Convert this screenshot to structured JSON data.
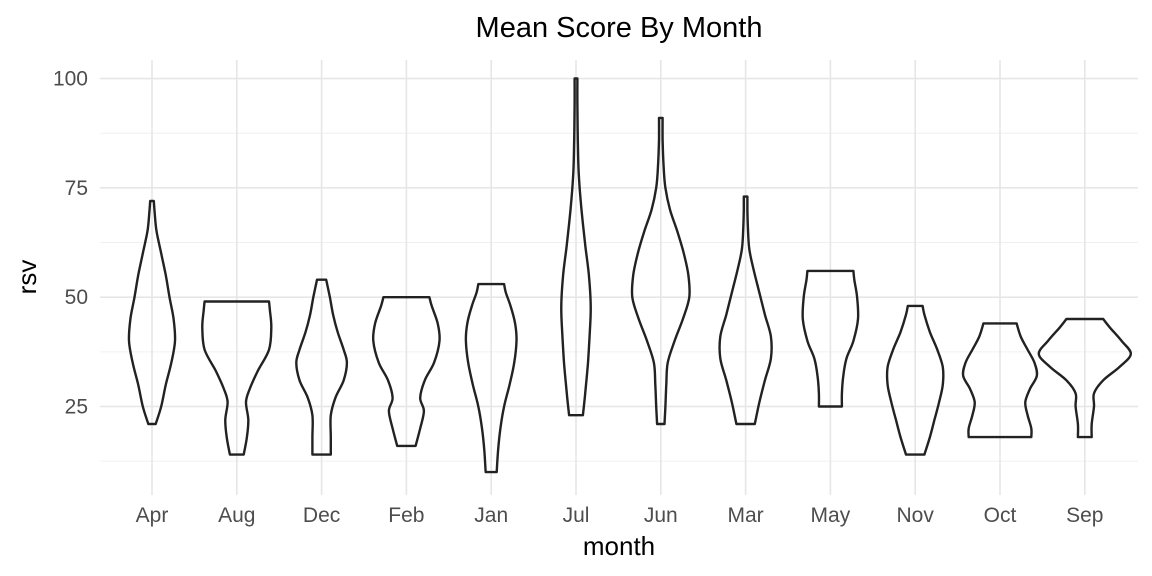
{
  "chart_data": {
    "type": "violin",
    "title": "Mean Score By Month",
    "xlabel": "month",
    "ylabel": "rsv",
    "ylim": [
      6,
      104
    ],
    "yticks": [
      25,
      50,
      75,
      100
    ],
    "grid": true,
    "line_color": "#222222",
    "categories": [
      "Apr",
      "Aug",
      "Dec",
      "Feb",
      "Jan",
      "Jul",
      "Jun",
      "Mar",
      "May",
      "Nov",
      "Oct",
      "Sep"
    ],
    "series": [
      {
        "category": "Apr",
        "min": 21,
        "max": 72,
        "profile": [
          [
            21,
            0.08
          ],
          [
            25,
            0.2
          ],
          [
            30,
            0.3
          ],
          [
            35,
            0.42
          ],
          [
            40,
            0.5
          ],
          [
            45,
            0.47
          ],
          [
            50,
            0.38
          ],
          [
            55,
            0.3
          ],
          [
            60,
            0.2
          ],
          [
            65,
            0.1
          ],
          [
            69,
            0.06
          ],
          [
            72,
            0.04
          ]
        ]
      },
      {
        "category": "Aug",
        "min": 14,
        "max": 49,
        "profile": [
          [
            14,
            0.15
          ],
          [
            18,
            0.22
          ],
          [
            22,
            0.25
          ],
          [
            26,
            0.2
          ],
          [
            29,
            0.28
          ],
          [
            33,
            0.45
          ],
          [
            38,
            0.7
          ],
          [
            43,
            0.75
          ],
          [
            47,
            0.72
          ],
          [
            49,
            0.7
          ]
        ]
      },
      {
        "category": "Dec",
        "min": 14,
        "max": 54,
        "profile": [
          [
            14,
            0.2
          ],
          [
            18,
            0.2
          ],
          [
            23,
            0.2
          ],
          [
            27,
            0.3
          ],
          [
            31,
            0.48
          ],
          [
            35,
            0.55
          ],
          [
            38,
            0.48
          ],
          [
            42,
            0.35
          ],
          [
            46,
            0.25
          ],
          [
            50,
            0.18
          ],
          [
            54,
            0.1
          ]
        ]
      },
      {
        "category": "Feb",
        "min": 16,
        "max": 50,
        "profile": [
          [
            16,
            0.2
          ],
          [
            20,
            0.3
          ],
          [
            24,
            0.38
          ],
          [
            27,
            0.3
          ],
          [
            31,
            0.4
          ],
          [
            35,
            0.6
          ],
          [
            40,
            0.72
          ],
          [
            44,
            0.68
          ],
          [
            48,
            0.55
          ],
          [
            50,
            0.5
          ]
        ]
      },
      {
        "category": "Jan",
        "min": 10,
        "max": 53,
        "profile": [
          [
            10,
            0.12
          ],
          [
            15,
            0.15
          ],
          [
            20,
            0.2
          ],
          [
            25,
            0.28
          ],
          [
            30,
            0.4
          ],
          [
            35,
            0.5
          ],
          [
            40,
            0.55
          ],
          [
            44,
            0.52
          ],
          [
            48,
            0.42
          ],
          [
            51,
            0.32
          ],
          [
            53,
            0.28
          ]
        ]
      },
      {
        "category": "Jul",
        "min": 23,
        "max": 100,
        "profile": [
          [
            23,
            0.15
          ],
          [
            28,
            0.2
          ],
          [
            35,
            0.26
          ],
          [
            42,
            0.3
          ],
          [
            48,
            0.32
          ],
          [
            55,
            0.28
          ],
          [
            62,
            0.2
          ],
          [
            70,
            0.12
          ],
          [
            78,
            0.06
          ],
          [
            86,
            0.04
          ],
          [
            94,
            0.03
          ],
          [
            100,
            0.03
          ]
        ]
      },
      {
        "category": "Jun",
        "min": 21,
        "max": 91,
        "profile": [
          [
            21,
            0.08
          ],
          [
            25,
            0.1
          ],
          [
            30,
            0.12
          ],
          [
            35,
            0.15
          ],
          [
            40,
            0.3
          ],
          [
            45,
            0.48
          ],
          [
            50,
            0.62
          ],
          [
            55,
            0.6
          ],
          [
            60,
            0.5
          ],
          [
            65,
            0.36
          ],
          [
            70,
            0.2
          ],
          [
            75,
            0.1
          ],
          [
            80,
            0.06
          ],
          [
            86,
            0.04
          ],
          [
            91,
            0.04
          ]
        ]
      },
      {
        "category": "Mar",
        "min": 21,
        "max": 73,
        "profile": [
          [
            21,
            0.2
          ],
          [
            26,
            0.3
          ],
          [
            31,
            0.42
          ],
          [
            36,
            0.55
          ],
          [
            41,
            0.55
          ],
          [
            46,
            0.42
          ],
          [
            51,
            0.3
          ],
          [
            56,
            0.18
          ],
          [
            61,
            0.08
          ],
          [
            66,
            0.05
          ],
          [
            70,
            0.04
          ],
          [
            73,
            0.04
          ]
        ]
      },
      {
        "category": "May",
        "min": 25,
        "max": 56,
        "profile": [
          [
            25,
            0.25
          ],
          [
            28,
            0.25
          ],
          [
            32,
            0.28
          ],
          [
            36,
            0.35
          ],
          [
            40,
            0.5
          ],
          [
            45,
            0.6
          ],
          [
            50,
            0.58
          ],
          [
            54,
            0.52
          ],
          [
            56,
            0.5
          ]
        ]
      },
      {
        "category": "Nov",
        "min": 14,
        "max": 48,
        "profile": [
          [
            14,
            0.2
          ],
          [
            18,
            0.32
          ],
          [
            22,
            0.42
          ],
          [
            26,
            0.52
          ],
          [
            30,
            0.6
          ],
          [
            34,
            0.6
          ],
          [
            38,
            0.48
          ],
          [
            42,
            0.32
          ],
          [
            46,
            0.2
          ],
          [
            48,
            0.16
          ]
        ]
      },
      {
        "category": "Oct",
        "min": 18,
        "max": 44,
        "profile": [
          [
            18,
            0.68
          ],
          [
            20,
            0.68
          ],
          [
            23,
            0.6
          ],
          [
            26,
            0.55
          ],
          [
            29,
            0.65
          ],
          [
            32,
            0.8
          ],
          [
            35,
            0.75
          ],
          [
            38,
            0.6
          ],
          [
            41,
            0.45
          ],
          [
            44,
            0.36
          ]
        ]
      },
      {
        "category": "Sep",
        "min": 18,
        "max": 45,
        "profile": [
          [
            18,
            0.15
          ],
          [
            21,
            0.15
          ],
          [
            25,
            0.2
          ],
          [
            28,
            0.2
          ],
          [
            31,
            0.4
          ],
          [
            34,
            0.75
          ],
          [
            37,
            1.0
          ],
          [
            40,
            0.8
          ],
          [
            43,
            0.55
          ],
          [
            45,
            0.4
          ]
        ]
      }
    ]
  }
}
